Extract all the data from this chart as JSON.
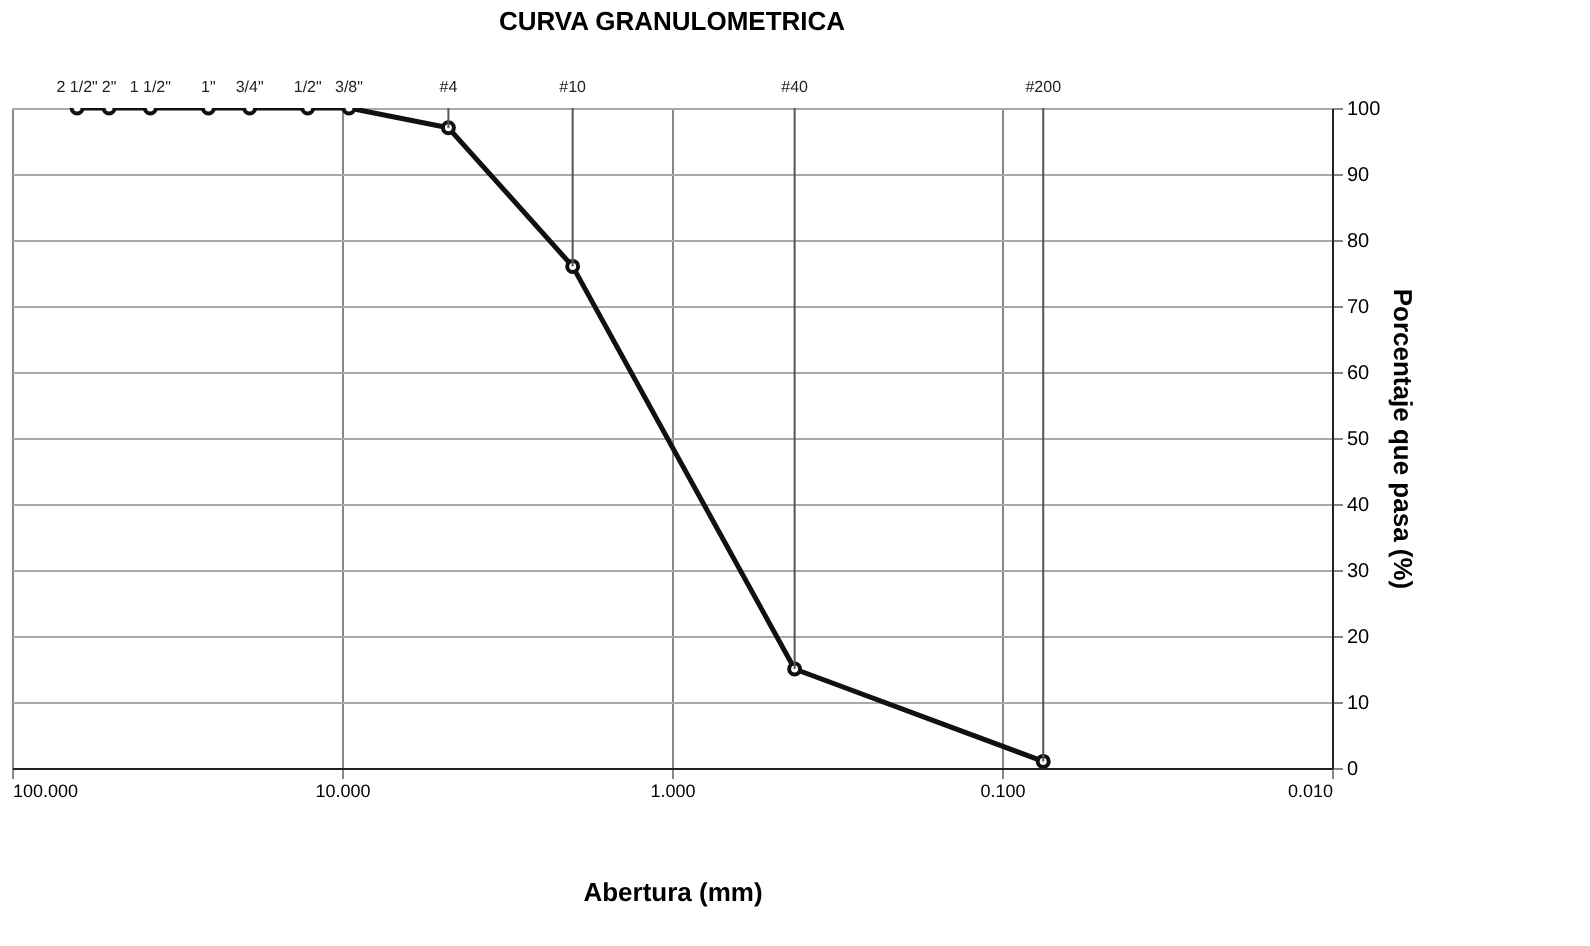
{
  "chart_data": {
    "type": "line",
    "title": "CURVA GRANULOMETRICA",
    "xlabel": "Abertura (mm)",
    "ylabel": "Porcentaje que pasa (%)",
    "x": [
      63.5,
      50.8,
      38.1,
      25.4,
      19.05,
      12.7,
      9.525,
      4.76,
      2.0,
      0.425,
      0.075
    ],
    "series": [
      {
        "color": "#111111",
        "values": [
          100,
          100,
          100,
          100,
          100,
          100,
          100,
          97,
          76,
          15,
          1
        ]
      }
    ],
    "log": "x",
    "xlim": [
      100,
      0.01
    ],
    "xticks": [
      {
        "value": 100,
        "label": "100.000"
      },
      {
        "value": 10,
        "label": "10.000"
      },
      {
        "value": 1,
        "label": "1.000"
      },
      {
        "value": 0.1,
        "label": "0.100"
      },
      {
        "value": 0.01,
        "label": "0.010"
      }
    ],
    "annotations": [
      {
        "text": "2 1/2\"",
        "x": 63.5,
        "y": 100
      },
      {
        "text": "2\"",
        "x": 50.8,
        "y": 100
      },
      {
        "text": "1 1/2\"",
        "x": 38.1,
        "y": 100
      },
      {
        "text": "1\"",
        "x": 25.4,
        "y": 100
      },
      {
        "text": "3/4\"",
        "x": 19.05,
        "y": 100
      },
      {
        "text": "1/2\"",
        "x": 12.7,
        "y": 100
      },
      {
        "text": "3/8\"",
        "x": 9.525,
        "y": 100
      },
      {
        "text": "#4",
        "x": 4.76,
        "y": 97
      },
      {
        "text": "#10",
        "x": 2.0,
        "y": 76
      },
      {
        "text": "#40",
        "x": 0.425,
        "y": 15
      },
      {
        "text": "#200",
        "x": 0.075,
        "y": 1
      }
    ],
    "ylim": [
      0,
      100
    ],
    "yticks": [
      0,
      10,
      20,
      30,
      40,
      50,
      60,
      70,
      80,
      90,
      100
    ],
    "grid": true,
    "marker": "circle",
    "line_style": "solid"
  }
}
